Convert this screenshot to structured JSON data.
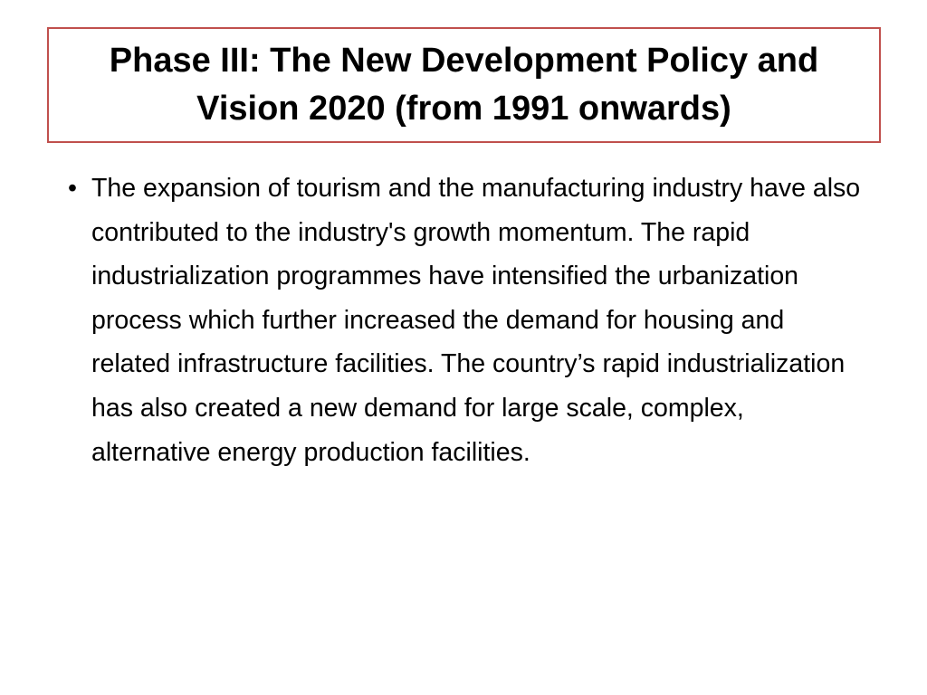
{
  "slide": {
    "title": "Phase III: The New Development Policy and Vision 2020 (from 1991 onwards)",
    "bullets": [
      "The expansion of tourism and the manufacturing industry have also contributed to the industry's growth momentum. The rapid industrialization programmes have intensified the urbanization process which further increased the demand for housing and related infrastructure facilities. The country’s rapid industrialization has also created a new demand for large scale, complex, alternative energy production facilities."
    ]
  }
}
